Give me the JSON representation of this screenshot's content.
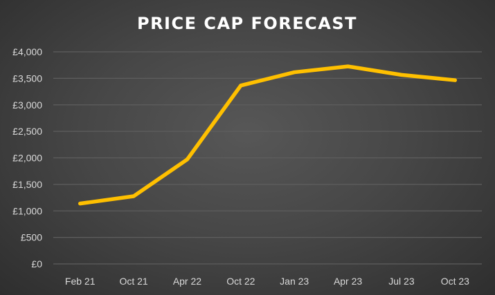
{
  "chart_data": {
    "type": "line",
    "title": "PRICE CAP FORECAST",
    "xlabel": "",
    "ylabel": "",
    "categories": [
      "Feb 21",
      "Oct 21",
      "Apr 22",
      "Oct 22",
      "Jan 23",
      "Apr 23",
      "Jul 23",
      "Oct 23"
    ],
    "series": [
      {
        "name": "Price cap",
        "values": [
          1138,
          1277,
          1971,
          3364,
          3615,
          3725,
          3565,
          3465
        ],
        "color": "#FFC000"
      }
    ],
    "ylim": [
      0,
      4000
    ],
    "yticks": [
      0,
      500,
      1000,
      1500,
      2000,
      2500,
      3000,
      3500,
      4000
    ],
    "ytick_labels": [
      "£0",
      "£500",
      "£1,000",
      "£1,500",
      "£2,000",
      "£2,500",
      "£3,000",
      "£3,500",
      "£4,000"
    ],
    "grid": true,
    "legend": "none",
    "gridline_color": "#5e5e5e"
  }
}
